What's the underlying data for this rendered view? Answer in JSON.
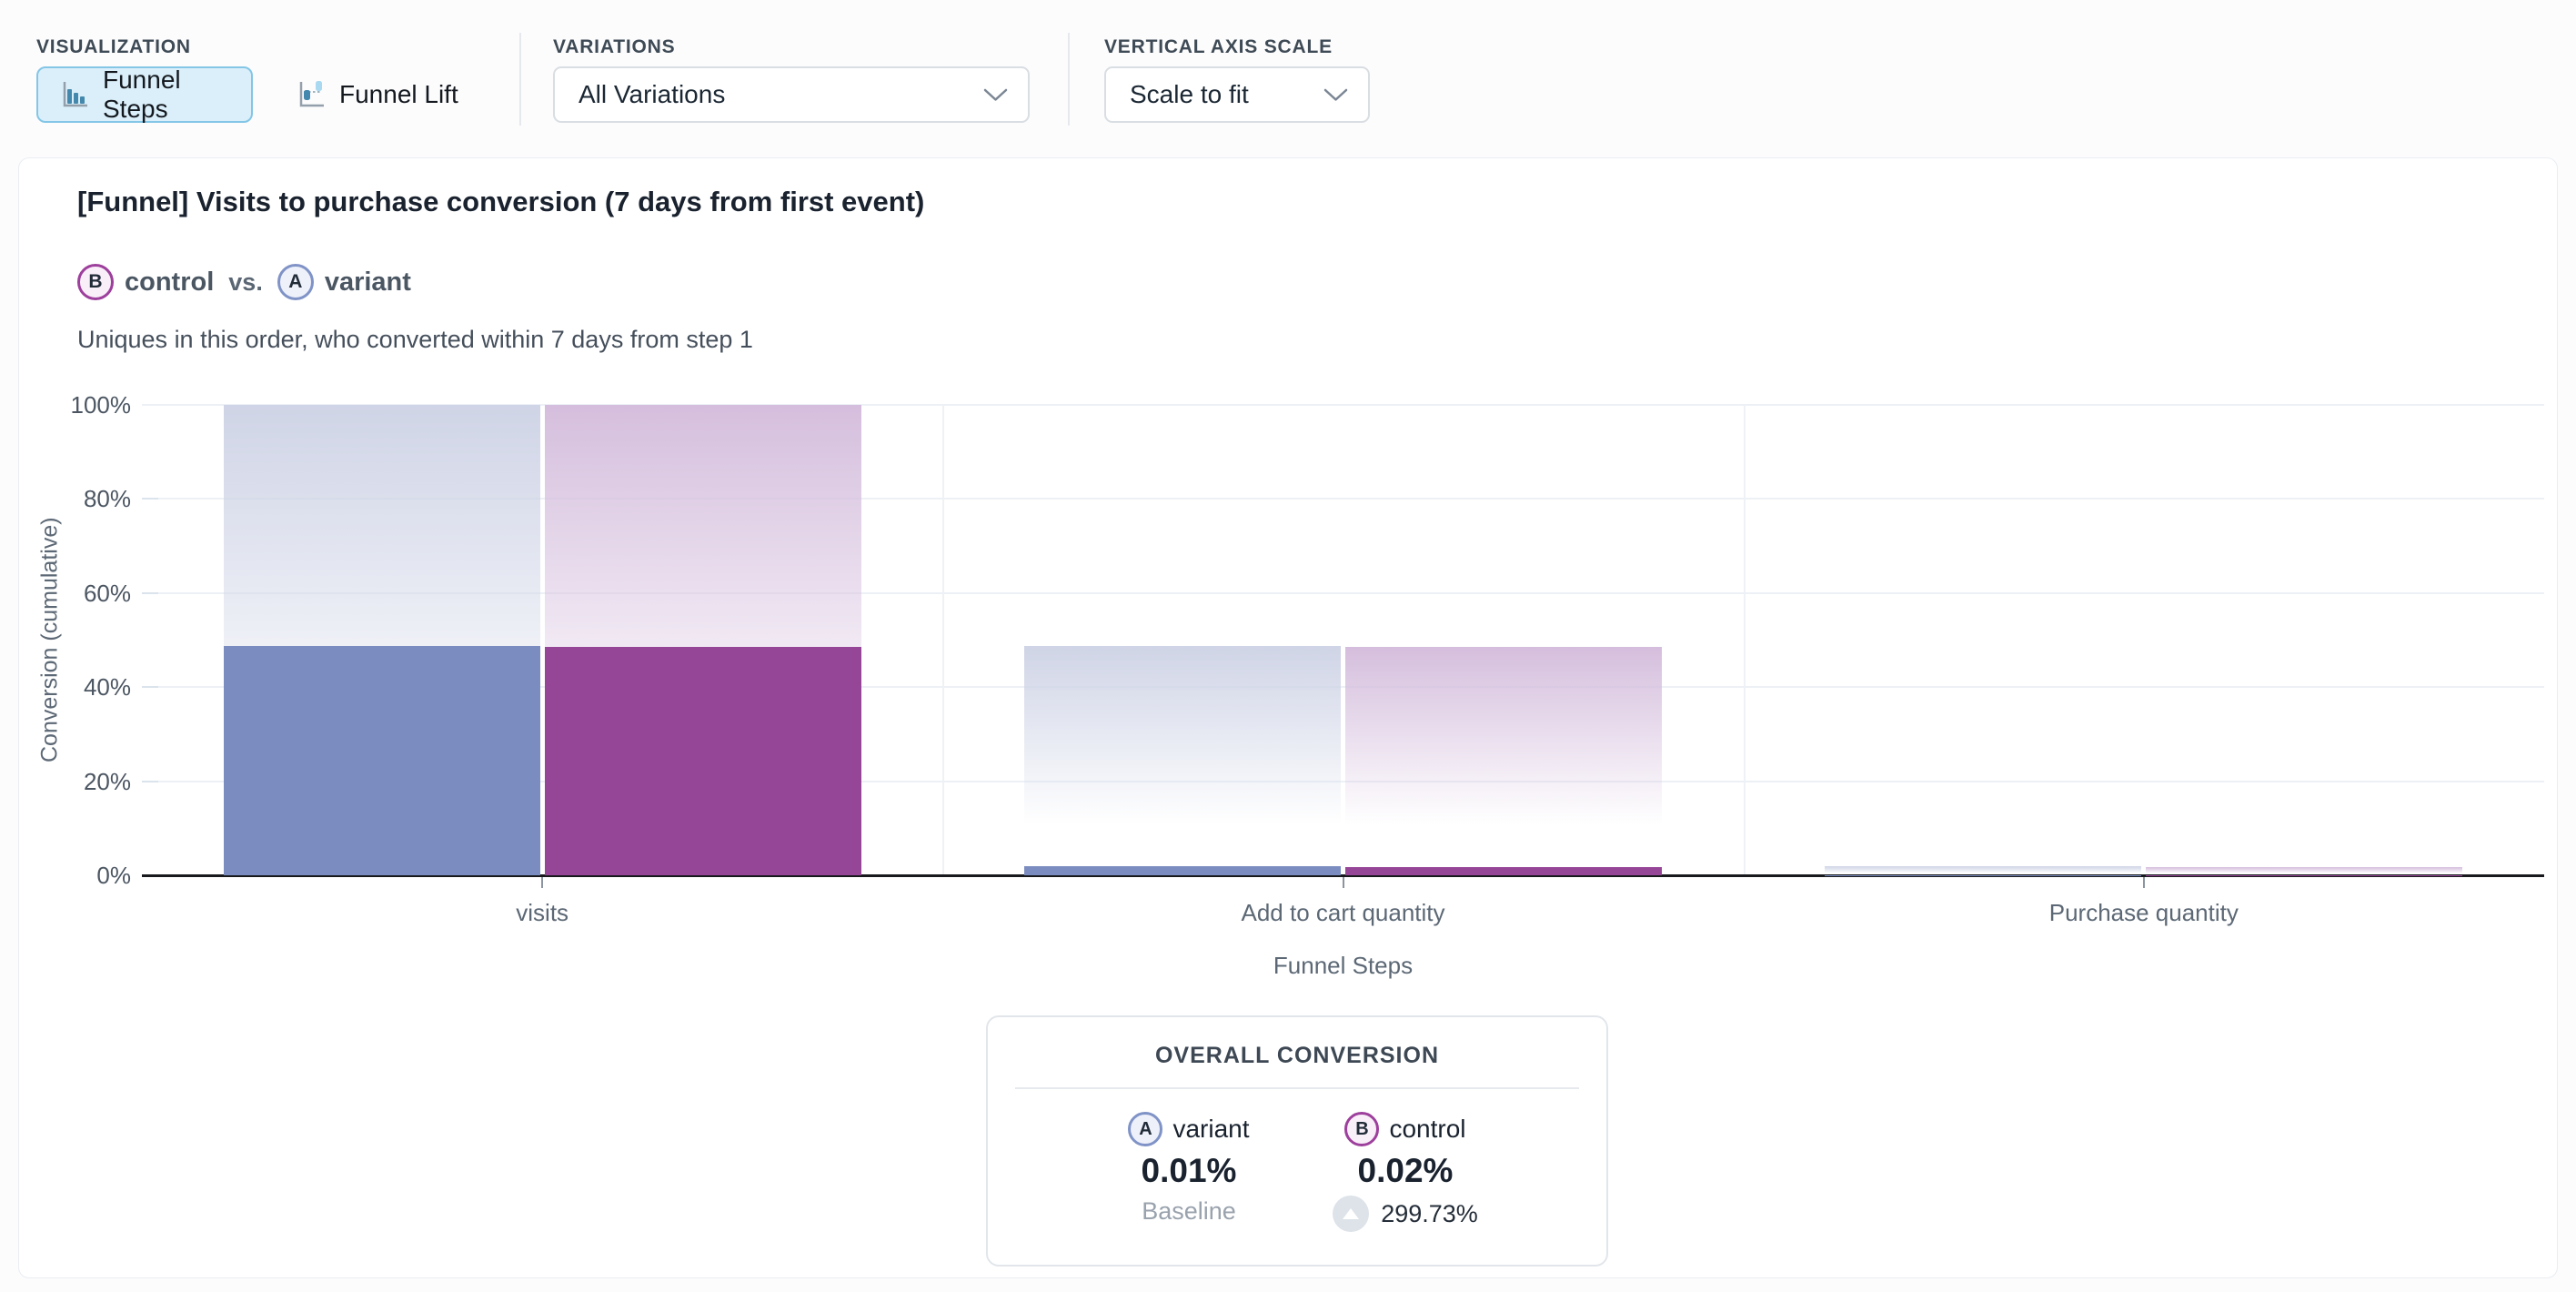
{
  "toolbar": {
    "visualization": {
      "label": "VISUALIZATION",
      "buttons": [
        {
          "label": "Funnel Steps",
          "selected": true
        },
        {
          "label": "Funnel Lift",
          "selected": false
        }
      ]
    },
    "variations": {
      "label": "VARIATIONS",
      "value": "All Variations"
    },
    "vertical_axis_scale": {
      "label": "VERTICAL AXIS SCALE",
      "value": "Scale to fit"
    }
  },
  "chart": {
    "title": "[Funnel] Visits to purchase conversion (7 days from first event)",
    "comparison": {
      "left_badge": "B",
      "left_name": "control",
      "vs": "vs.",
      "right_badge": "A",
      "right_name": "variant"
    },
    "subtitle": "Uniques in this order, who converted within 7 days from step 1"
  },
  "chart_data": {
    "type": "bar",
    "title": "[Funnel] Visits to purchase conversion (7 days from first event)",
    "xlabel": "Funnel Steps",
    "ylabel": "Conversion (cumulative)",
    "ylim": [
      0,
      100
    ],
    "yticks": [
      "0%",
      "20%",
      "40%",
      "60%",
      "80%",
      "100%"
    ],
    "grid": true,
    "legend_position": "top-left",
    "categories": [
      "visits",
      "Add to cart quantity",
      "Purchase quantity"
    ],
    "series": [
      {
        "name": "variant",
        "badge": "A",
        "color": "#7b8dc0",
        "gradient_top": "#cfd4e6",
        "cumulative_conversion_pct": [
          48.8,
          1.9,
          0.05
        ],
        "segment_top_pct": [
          100,
          48.8,
          1.9
        ]
      },
      {
        "name": "control",
        "badge": "B",
        "color": "#964697",
        "gradient_top": "#d5bedd",
        "cumulative_conversion_pct": [
          48.5,
          1.7,
          0.05
        ],
        "segment_top_pct": [
          100,
          48.5,
          1.7
        ]
      }
    ]
  },
  "summary": {
    "title": "OVERALL CONVERSION",
    "columns": [
      {
        "badge": "A",
        "name": "variant",
        "value": "0.01%",
        "note": "Baseline"
      },
      {
        "badge": "B",
        "name": "control",
        "value": "0.02%",
        "note": "299.73%",
        "delta_direction": "up"
      }
    ]
  },
  "colors": {
    "variant": "#7b8dc0",
    "control": "#964697",
    "variant_ring": "#8093c7",
    "control_ring": "#9d3f9c",
    "variant_tint": "#eef1fa",
    "control_tint": "#f9eff9",
    "selected_bg": "#dbeffa",
    "selected_border": "#84c6e6",
    "icon_teal": "#4489ad",
    "icon_light": "#a9d9f0"
  }
}
